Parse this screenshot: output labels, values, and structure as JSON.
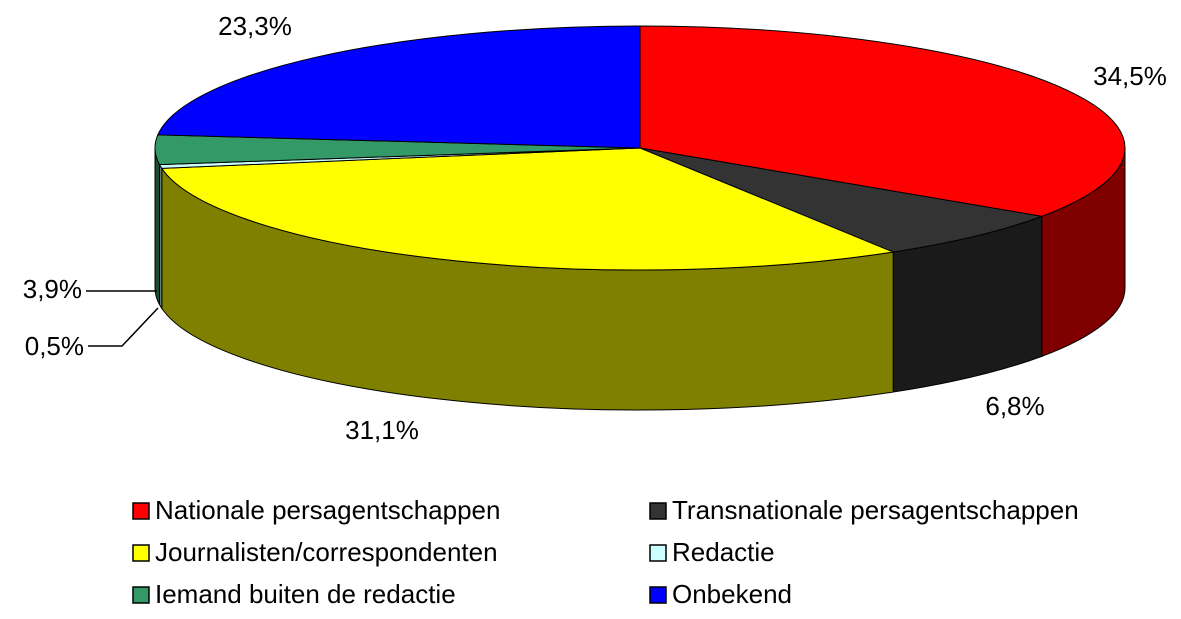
{
  "chart_data": {
    "type": "pie",
    "three_d": true,
    "categories": [
      "Nationale persagentschappen",
      "Transnationale persagentschappen",
      "Journalisten/correspondenten",
      "Redactie",
      "Iemand buiten de redactie",
      "Onbekend"
    ],
    "values": [
      34.5,
      6.8,
      31.1,
      0.5,
      3.9,
      23.3
    ],
    "value_labels": [
      "34,5%",
      "6,8%",
      "31,1%",
      "0,5%",
      "3,9%",
      "23,3%"
    ],
    "colors": [
      "#ff0000",
      "#333333",
      "#ffff00",
      "#ccffff",
      "#339966",
      "#0000ff"
    ],
    "legend": "bottom"
  }
}
